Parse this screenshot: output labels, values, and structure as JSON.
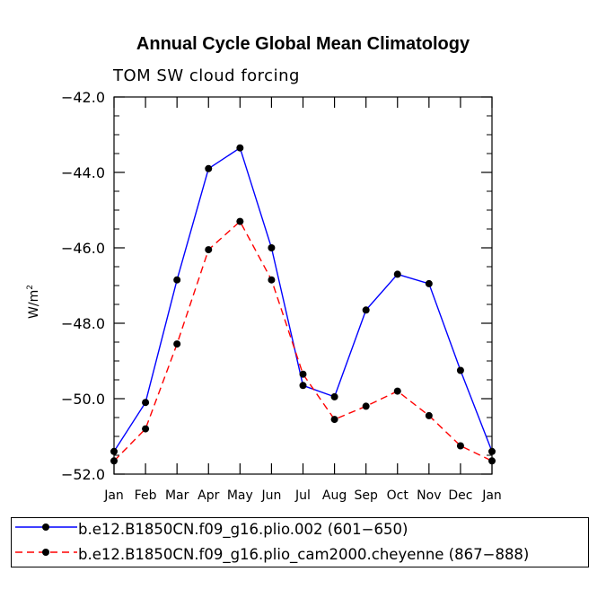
{
  "chart_data": {
    "type": "line",
    "title": "Annual Cycle Global Mean Climatology",
    "subtitle": "TOM SW cloud forcing",
    "ylabel": "W/m",
    "ylabel_sup": "2",
    "xlabel": "",
    "ylim": [
      -52.0,
      -42.0
    ],
    "yticks": [
      "-42.0",
      "-44.0",
      "-46.0",
      "-48.0",
      "-50.0",
      "-52.0"
    ],
    "categories": [
      "Jan",
      "Feb",
      "Mar",
      "Apr",
      "May",
      "Jun",
      "Jul",
      "Aug",
      "Sep",
      "Oct",
      "Nov",
      "Dec",
      "Jan"
    ],
    "series": [
      {
        "name": "b.e12.B1850CN.f09_g16.plio.002 (601−650)",
        "color": "#0000ff",
        "dash": "solid",
        "values": [
          -51.4,
          -50.1,
          -46.85,
          -43.9,
          -43.35,
          -46.0,
          -49.65,
          -49.95,
          -47.65,
          -46.7,
          -46.95,
          -49.25,
          -51.4
        ]
      },
      {
        "name": "b.e12.B1850CN.f09_g16.plio_cam2000.cheyenne (867−888)",
        "color": "#ff0000",
        "dash": "dashed",
        "values": [
          -51.65,
          -50.8,
          -48.55,
          -46.05,
          -45.3,
          -46.85,
          -49.35,
          -50.55,
          -50.2,
          -49.8,
          -50.45,
          -51.25,
          -51.65
        ]
      }
    ],
    "legend_position": "bottom"
  }
}
